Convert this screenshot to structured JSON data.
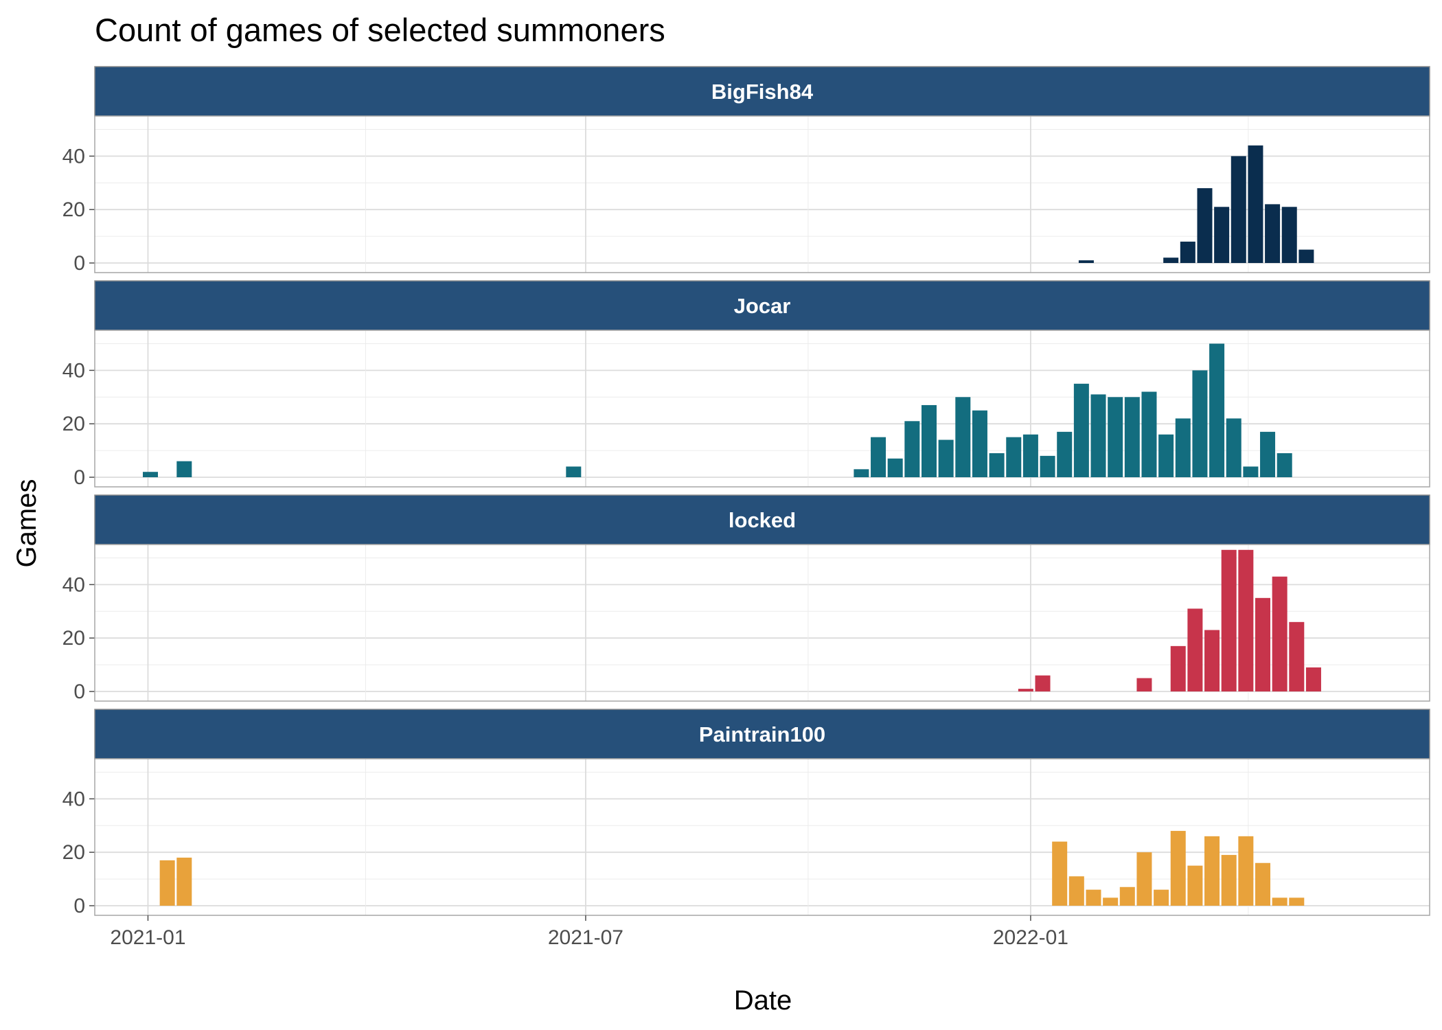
{
  "chart_data": {
    "type": "bar",
    "title": "Count of games of selected summoners",
    "xlabel": "Date",
    "ylabel": "Games",
    "x_ticks": [
      "2021-01",
      "2021-07",
      "2022-01"
    ],
    "y_ticks": [
      0,
      20,
      40
    ],
    "ylim": [
      0,
      55
    ],
    "xlim": [
      "2020-12-10",
      "2022-06-15"
    ],
    "bin": "week",
    "grid": true,
    "legend": "none",
    "strip_color": "#26507a",
    "facets": [
      {
        "name": "BigFish84",
        "color": "#0a2d4e",
        "bars": [
          {
            "week": "2022-01-24",
            "value": 1
          },
          {
            "week": "2022-02-28",
            "value": 2
          },
          {
            "week": "2022-03-07",
            "value": 8
          },
          {
            "week": "2022-03-14",
            "value": 28
          },
          {
            "week": "2022-03-21",
            "value": 21
          },
          {
            "week": "2022-03-28",
            "value": 40
          },
          {
            "week": "2022-04-04",
            "value": 44
          },
          {
            "week": "2022-04-11",
            "value": 22
          },
          {
            "week": "2022-04-18",
            "value": 21
          },
          {
            "week": "2022-04-25",
            "value": 5
          }
        ]
      },
      {
        "name": "Jocar",
        "color": "#136d7f",
        "bars": [
          {
            "week": "2021-01-02",
            "value": 2
          },
          {
            "week": "2021-01-16",
            "value": 6
          },
          {
            "week": "2021-06-26",
            "value": 4
          },
          {
            "week": "2021-10-23",
            "value": 3
          },
          {
            "week": "2021-10-30",
            "value": 15
          },
          {
            "week": "2021-11-06",
            "value": 7
          },
          {
            "week": "2021-11-13",
            "value": 21
          },
          {
            "week": "2021-11-20",
            "value": 27
          },
          {
            "week": "2021-11-27",
            "value": 14
          },
          {
            "week": "2021-12-04",
            "value": 30
          },
          {
            "week": "2021-12-11",
            "value": 25
          },
          {
            "week": "2021-12-18",
            "value": 9
          },
          {
            "week": "2021-12-25",
            "value": 15
          },
          {
            "week": "2022-01-01",
            "value": 16
          },
          {
            "week": "2022-01-08",
            "value": 8
          },
          {
            "week": "2022-01-15",
            "value": 17
          },
          {
            "week": "2022-01-22",
            "value": 35
          },
          {
            "week": "2022-01-29",
            "value": 31
          },
          {
            "week": "2022-02-05",
            "value": 30
          },
          {
            "week": "2022-02-12",
            "value": 30
          },
          {
            "week": "2022-02-19",
            "value": 32
          },
          {
            "week": "2022-02-26",
            "value": 16
          },
          {
            "week": "2022-03-05",
            "value": 22
          },
          {
            "week": "2022-03-12",
            "value": 40
          },
          {
            "week": "2022-03-19",
            "value": 50
          },
          {
            "week": "2022-03-26",
            "value": 22
          },
          {
            "week": "2022-04-02",
            "value": 4
          },
          {
            "week": "2022-04-09",
            "value": 17
          },
          {
            "week": "2022-04-16",
            "value": 9
          }
        ]
      },
      {
        "name": "locked",
        "color": "#c7344b",
        "bars": [
          {
            "week": "2021-12-30",
            "value": 1
          },
          {
            "week": "2022-01-06",
            "value": 6
          },
          {
            "week": "2022-02-17",
            "value": 5
          },
          {
            "week": "2022-03-03",
            "value": 17
          },
          {
            "week": "2022-03-10",
            "value": 31
          },
          {
            "week": "2022-03-17",
            "value": 23
          },
          {
            "week": "2022-03-24",
            "value": 53
          },
          {
            "week": "2022-03-31",
            "value": 53
          },
          {
            "week": "2022-04-07",
            "value": 35
          },
          {
            "week": "2022-04-14",
            "value": 43
          },
          {
            "week": "2022-04-21",
            "value": 26
          },
          {
            "week": "2022-04-28",
            "value": 9
          }
        ]
      },
      {
        "name": "Paintrain100",
        "color": "#e8a23b",
        "bars": [
          {
            "week": "2021-01-09",
            "value": 17
          },
          {
            "week": "2021-01-16",
            "value": 18
          },
          {
            "week": "2022-01-13",
            "value": 24
          },
          {
            "week": "2022-01-20",
            "value": 11
          },
          {
            "week": "2022-01-27",
            "value": 6
          },
          {
            "week": "2022-02-03",
            "value": 3
          },
          {
            "week": "2022-02-10",
            "value": 7
          },
          {
            "week": "2022-02-17",
            "value": 20
          },
          {
            "week": "2022-02-24",
            "value": 6
          },
          {
            "week": "2022-03-03",
            "value": 28
          },
          {
            "week": "2022-03-10",
            "value": 15
          },
          {
            "week": "2022-03-17",
            "value": 26
          },
          {
            "week": "2022-03-24",
            "value": 19
          },
          {
            "week": "2022-03-31",
            "value": 26
          },
          {
            "week": "2022-04-07",
            "value": 16
          },
          {
            "week": "2022-04-14",
            "value": 3
          },
          {
            "week": "2022-04-21",
            "value": 3
          }
        ]
      }
    ]
  }
}
